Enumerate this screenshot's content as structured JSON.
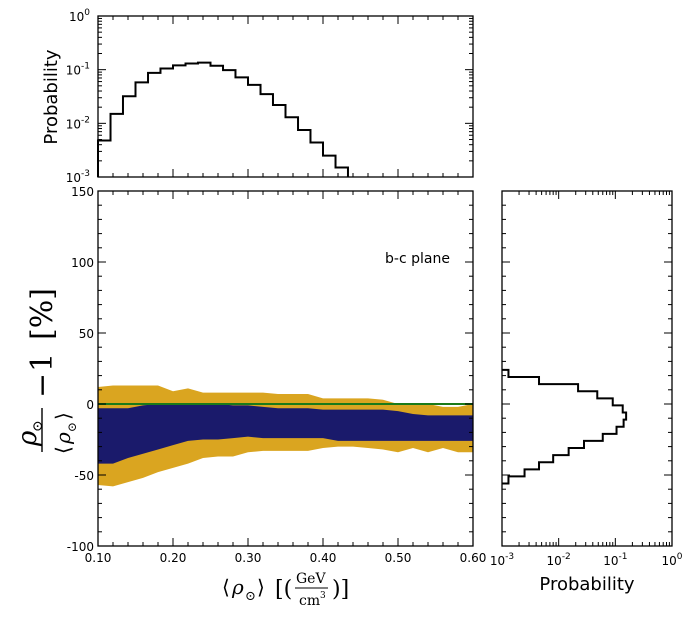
{
  "chart_data": [
    {
      "id": "top_hist",
      "type": "histogram",
      "xlim": [
        0.1,
        0.6
      ],
      "ylim_log10": [
        -3,
        0
      ],
      "ylabel": "Probability",
      "yticks": [
        {
          "b": "10",
          "e": "0"
        },
        {
          "b": "10",
          "e": "-1"
        },
        {
          "b": "10",
          "e": "-2"
        },
        {
          "b": "10",
          "e": "-3"
        }
      ],
      "bin_edges": [
        0.1,
        0.1167,
        0.1333,
        0.15,
        0.1667,
        0.1833,
        0.2,
        0.2167,
        0.2333,
        0.25,
        0.2667,
        0.2833,
        0.3,
        0.3167,
        0.3333,
        0.35,
        0.3667,
        0.3833,
        0.4,
        0.4167,
        0.4333
      ],
      "values": [
        0.0048,
        0.015,
        0.032,
        0.058,
        0.087,
        0.105,
        0.12,
        0.13,
        0.135,
        0.118,
        0.098,
        0.072,
        0.052,
        0.035,
        0.022,
        0.013,
        0.0075,
        0.0044,
        0.0025,
        0.0015
      ]
    },
    {
      "id": "main_band",
      "type": "area",
      "xlim": [
        0.1,
        0.6
      ],
      "ylim": [
        -100,
        150
      ],
      "xticks": [
        "0.10",
        "0.20",
        "0.30",
        "0.40",
        "0.50",
        "0.60"
      ],
      "yticks": [
        "150",
        "100",
        "50",
        "0",
        "-50",
        "-100"
      ],
      "xlabel": "⟨ρ⊙⟩ [(GeV/cm³)]",
      "ylabel": "ρ⊙/⟨ρ⊙⟩ − 1  [%]",
      "annotation": "b-c plane",
      "reference_line": {
        "y": 0,
        "color": "#1a7a1a"
      },
      "x": [
        0.1,
        0.12,
        0.14,
        0.16,
        0.18,
        0.2,
        0.22,
        0.24,
        0.26,
        0.28,
        0.3,
        0.32,
        0.34,
        0.36,
        0.38,
        0.4,
        0.42,
        0.44,
        0.46,
        0.48,
        0.5,
        0.52,
        0.54,
        0.56,
        0.58,
        0.6
      ],
      "series": [
        {
          "name": "outer band",
          "color": "#daa520",
          "lower": [
            -57,
            -58,
            -55,
            -52,
            -48,
            -45,
            -42,
            -38,
            -37,
            -37,
            -34,
            -33,
            -33,
            -33,
            -33,
            -31,
            -30,
            -30,
            -31,
            -32,
            -34,
            -31,
            -34,
            -31,
            -34,
            -34
          ],
          "upper": [
            12,
            13,
            13,
            13,
            13,
            9,
            11,
            8,
            8,
            8,
            8,
            8,
            7,
            7,
            7,
            4,
            4,
            4,
            4,
            3,
            0,
            0,
            0,
            -2,
            -2,
            0
          ]
        },
        {
          "name": "inner band",
          "color": "#1a1a6b",
          "lower": [
            -42,
            -42,
            -38,
            -35,
            -32,
            -29,
            -26,
            -25,
            -25,
            -24,
            -23,
            -24,
            -24,
            -24,
            -24,
            -24,
            -26,
            -26,
            -26,
            -26,
            -26,
            -26,
            -26,
            -26,
            -26,
            -26
          ],
          "upper": [
            -3,
            -3,
            -3,
            -1,
            0,
            0,
            0,
            0,
            0,
            -1,
            -1,
            -2,
            -3,
            -3,
            -3,
            -4,
            -4,
            -4,
            -4,
            -4,
            -5,
            -7,
            -8,
            -8,
            -8,
            -8
          ]
        }
      ]
    },
    {
      "id": "right_hist",
      "type": "histogram",
      "orientation": "horizontal",
      "xlim_log10": [
        -3,
        0
      ],
      "ylim": [
        -100,
        150
      ],
      "xlabel": "Probability",
      "xticks": [
        {
          "b": "10",
          "e": "-3"
        },
        {
          "b": "10",
          "e": "-2"
        },
        {
          "b": "10",
          "e": "-1"
        },
        {
          "b": "10",
          "e": "0"
        }
      ],
      "bin_edges": [
        -56,
        -51,
        -46,
        -41,
        -36,
        -31,
        -26,
        -21,
        -16,
        -11,
        -6,
        -1,
        4,
        9,
        14,
        19,
        24
      ],
      "values": [
        0.0013,
        0.0025,
        0.0045,
        0.008,
        0.015,
        0.028,
        0.06,
        0.105,
        0.14,
        0.155,
        0.135,
        0.09,
        0.048,
        0.022,
        0.0045,
        0.0013
      ]
    }
  ]
}
